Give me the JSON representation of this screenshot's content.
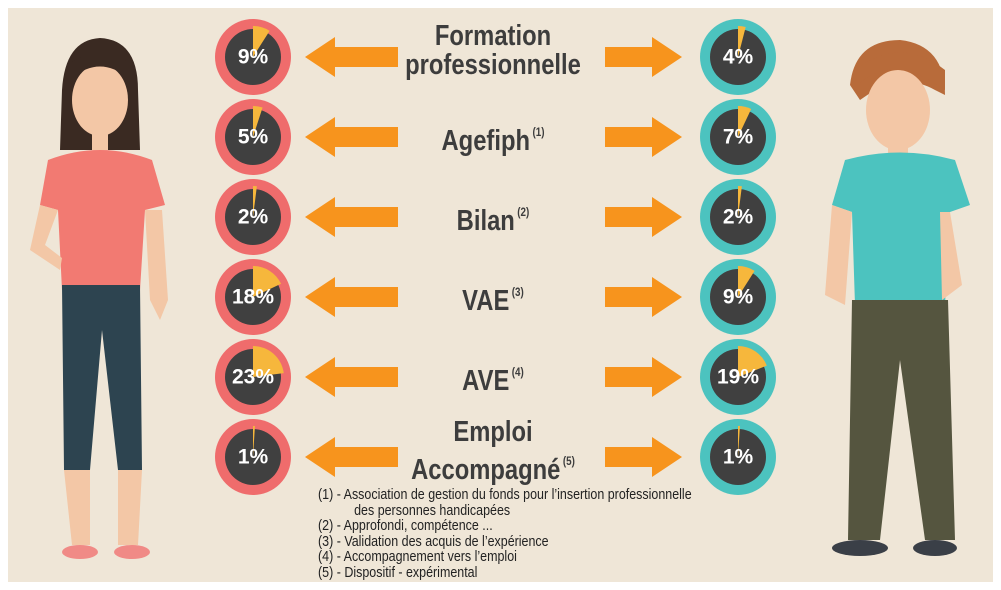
{
  "chart_data": {
    "type": "donut",
    "categories": [
      "Formation professionnelle",
      "Agefiph",
      "Bilan",
      "VAE",
      "AVE",
      "Emploi Accompagné"
    ],
    "superscripts": [
      null,
      "(1)",
      "(2)",
      "(3)",
      "(4)",
      "(5)"
    ],
    "series": [
      {
        "color": "#ef6c6c",
        "values": [
          9,
          5,
          2,
          18,
          23,
          1
        ],
        "value_labels": [
          "9%",
          "5%",
          "2%",
          "18%",
          "23%",
          "1%"
        ]
      },
      {
        "color": "#4cc3bf",
        "values": [
          4,
          7,
          2,
          9,
          19,
          1
        ],
        "value_labels": [
          "4%",
          "7%",
          "2%",
          "9%",
          "19%",
          "1%"
        ]
      }
    ],
    "wedge_color": "#f6b73c",
    "notes": [
      "(1) - Association de gestion du fonds pour l’insertion professionnelle des personnes handicapées",
      "(2) - Approfondi, compétence ...",
      "(3) - Validation des acquis de l’expérience",
      "(4) - Accompagnement vers l’emploi",
      "(5) - Dispositif - expérimental"
    ]
  }
}
